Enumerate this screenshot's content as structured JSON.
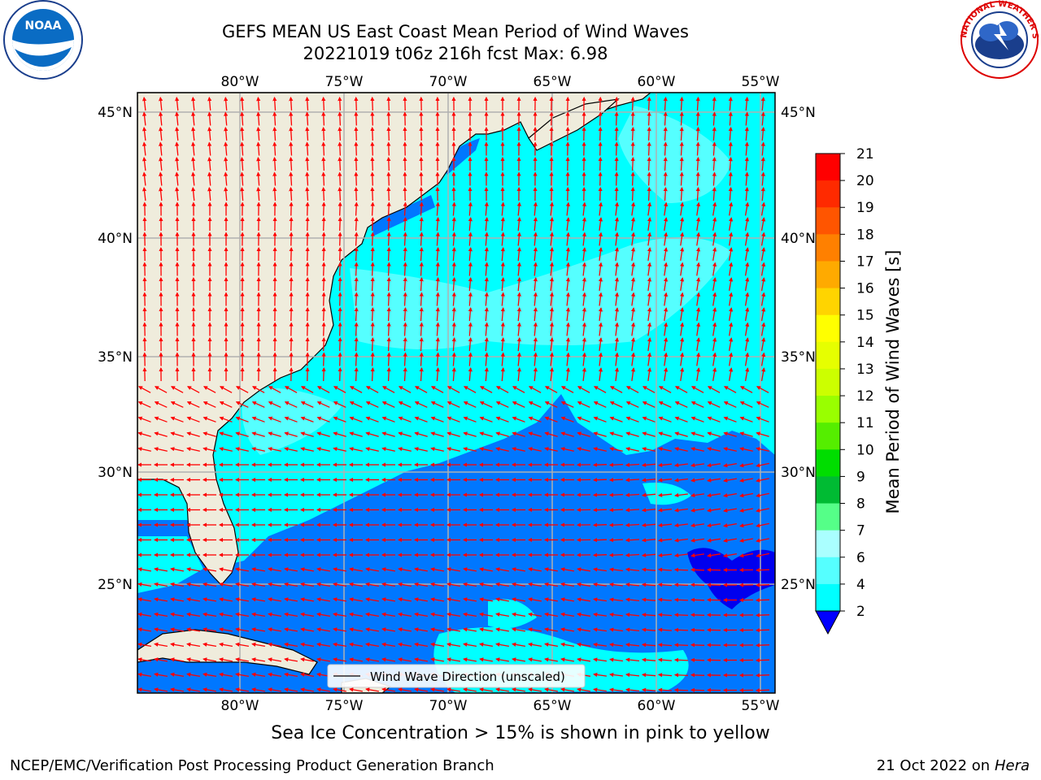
{
  "header": {
    "title_line1": "GEFS MEAN US East Coast Mean Period of Wind Waves",
    "title_line2": "20221019 t06z 216h fcst   Max: 6.98"
  },
  "map": {
    "lon_labels": [
      "80°W",
      "75°W",
      "70°W",
      "65°W",
      "60°W",
      "55°W"
    ],
    "lat_labels": [
      "45°N",
      "40°N",
      "35°N",
      "30°N",
      "25°N"
    ],
    "legend_label": "Wind Wave Direction (unscaled)",
    "arrow_color": "#ff0000",
    "land_color": "#efecdc",
    "grid_color": "#b0b0b0"
  },
  "colorbar": {
    "title": "Mean Period of Wind Waves [s]",
    "ticks": [
      "21",
      "20",
      "19",
      "18",
      "17",
      "16",
      "15",
      "14",
      "13",
      "12",
      "11",
      "10",
      "9",
      "8",
      "7",
      "6",
      "4",
      "2"
    ],
    "colors": [
      "#ff0000",
      "#ff2a00",
      "#ff5500",
      "#ff8000",
      "#ffaa00",
      "#ffd400",
      "#ffff00",
      "#e6ff00",
      "#ccff00",
      "#99ff00",
      "#55ee00",
      "#00dd00",
      "#00bb33",
      "#55ff88",
      "#aaffff",
      "#55ffff",
      "#00ffff",
      "#0077ff"
    ],
    "under_color": "#0000ff"
  },
  "note": "Sea Ice Concentration > 15% is shown in pink to yellow",
  "footer": {
    "left": "NCEP/EMC/Verification Post Processing Product Generation Branch",
    "right_date": "21 Oct 2022 on ",
    "right_machine": "Hera"
  },
  "logos": {
    "noaa_text": "NOAA",
    "nws_text": "NATIONAL WEATHER SERVICE"
  }
}
